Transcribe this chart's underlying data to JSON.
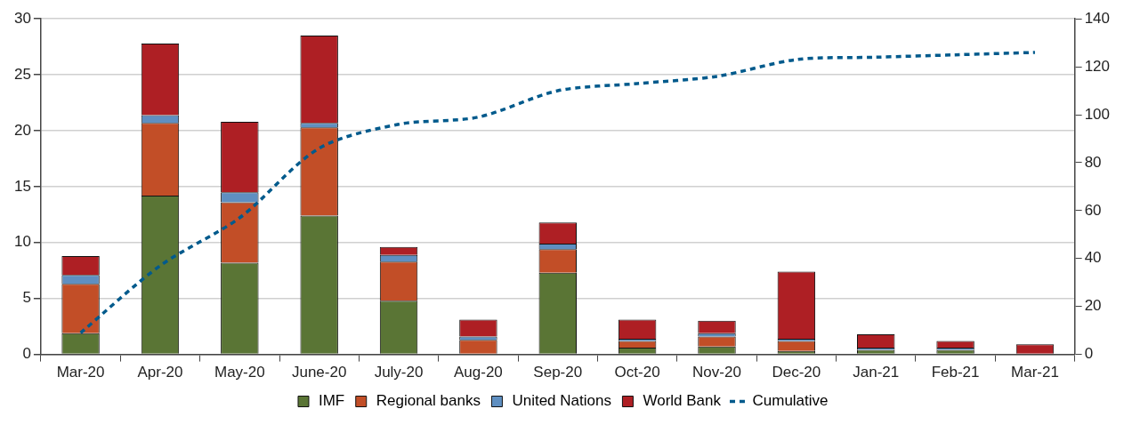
{
  "chart_data": {
    "type": "bar",
    "stacked": true,
    "categories": [
      "Mar-20",
      "Apr-20",
      "May-20",
      "June-20",
      "July-20",
      "Aug-20",
      "Sep-20",
      "Oct-20",
      "Nov-20",
      "Dec-20",
      "Jan-21",
      "Feb-21",
      "Mar-21"
    ],
    "series": [
      {
        "name": "IMF",
        "color": "#5a7535",
        "values": [
          1.9,
          14.2,
          8.2,
          12.4,
          4.8,
          0,
          7.3,
          0.6,
          0.7,
          0.3,
          0.4,
          0.4,
          0
        ]
      },
      {
        "name": "Regional banks",
        "color": "#c24e27",
        "values": [
          4.4,
          6.5,
          5.4,
          7.9,
          3.5,
          1.3,
          2.1,
          0.6,
          0.9,
          0.9,
          0,
          0,
          0
        ]
      },
      {
        "name": "United Nations",
        "color": "#5f8fc1",
        "values": [
          0.8,
          0.7,
          0.9,
          0.4,
          0.6,
          0.3,
          0.5,
          0.2,
          0.3,
          0.2,
          0.2,
          0.2,
          0
        ]
      },
      {
        "name": "World Bank",
        "color": "#ae1f24",
        "values": [
          1.7,
          6.4,
          6.3,
          7.8,
          0.7,
          1.5,
          1.9,
          1.7,
          1.1,
          6.0,
          1.2,
          0.6,
          0.9
        ]
      },
      {
        "name": "Cumulative",
        "type": "line",
        "axis": "y2",
        "line_style": "dashed",
        "color": "#005a8c",
        "values": [
          9,
          37,
          57,
          86,
          96,
          99,
          110,
          113,
          116,
          123,
          124,
          125,
          126
        ]
      }
    ],
    "ylim": [
      0,
      30
    ],
    "yticks": [
      0,
      5,
      10,
      15,
      20,
      25,
      30
    ],
    "y2lim": [
      0,
      140
    ],
    "y2ticks": [
      0,
      20,
      40,
      60,
      80,
      100,
      120,
      140
    ],
    "grid": "y",
    "legend": "bottom"
  }
}
